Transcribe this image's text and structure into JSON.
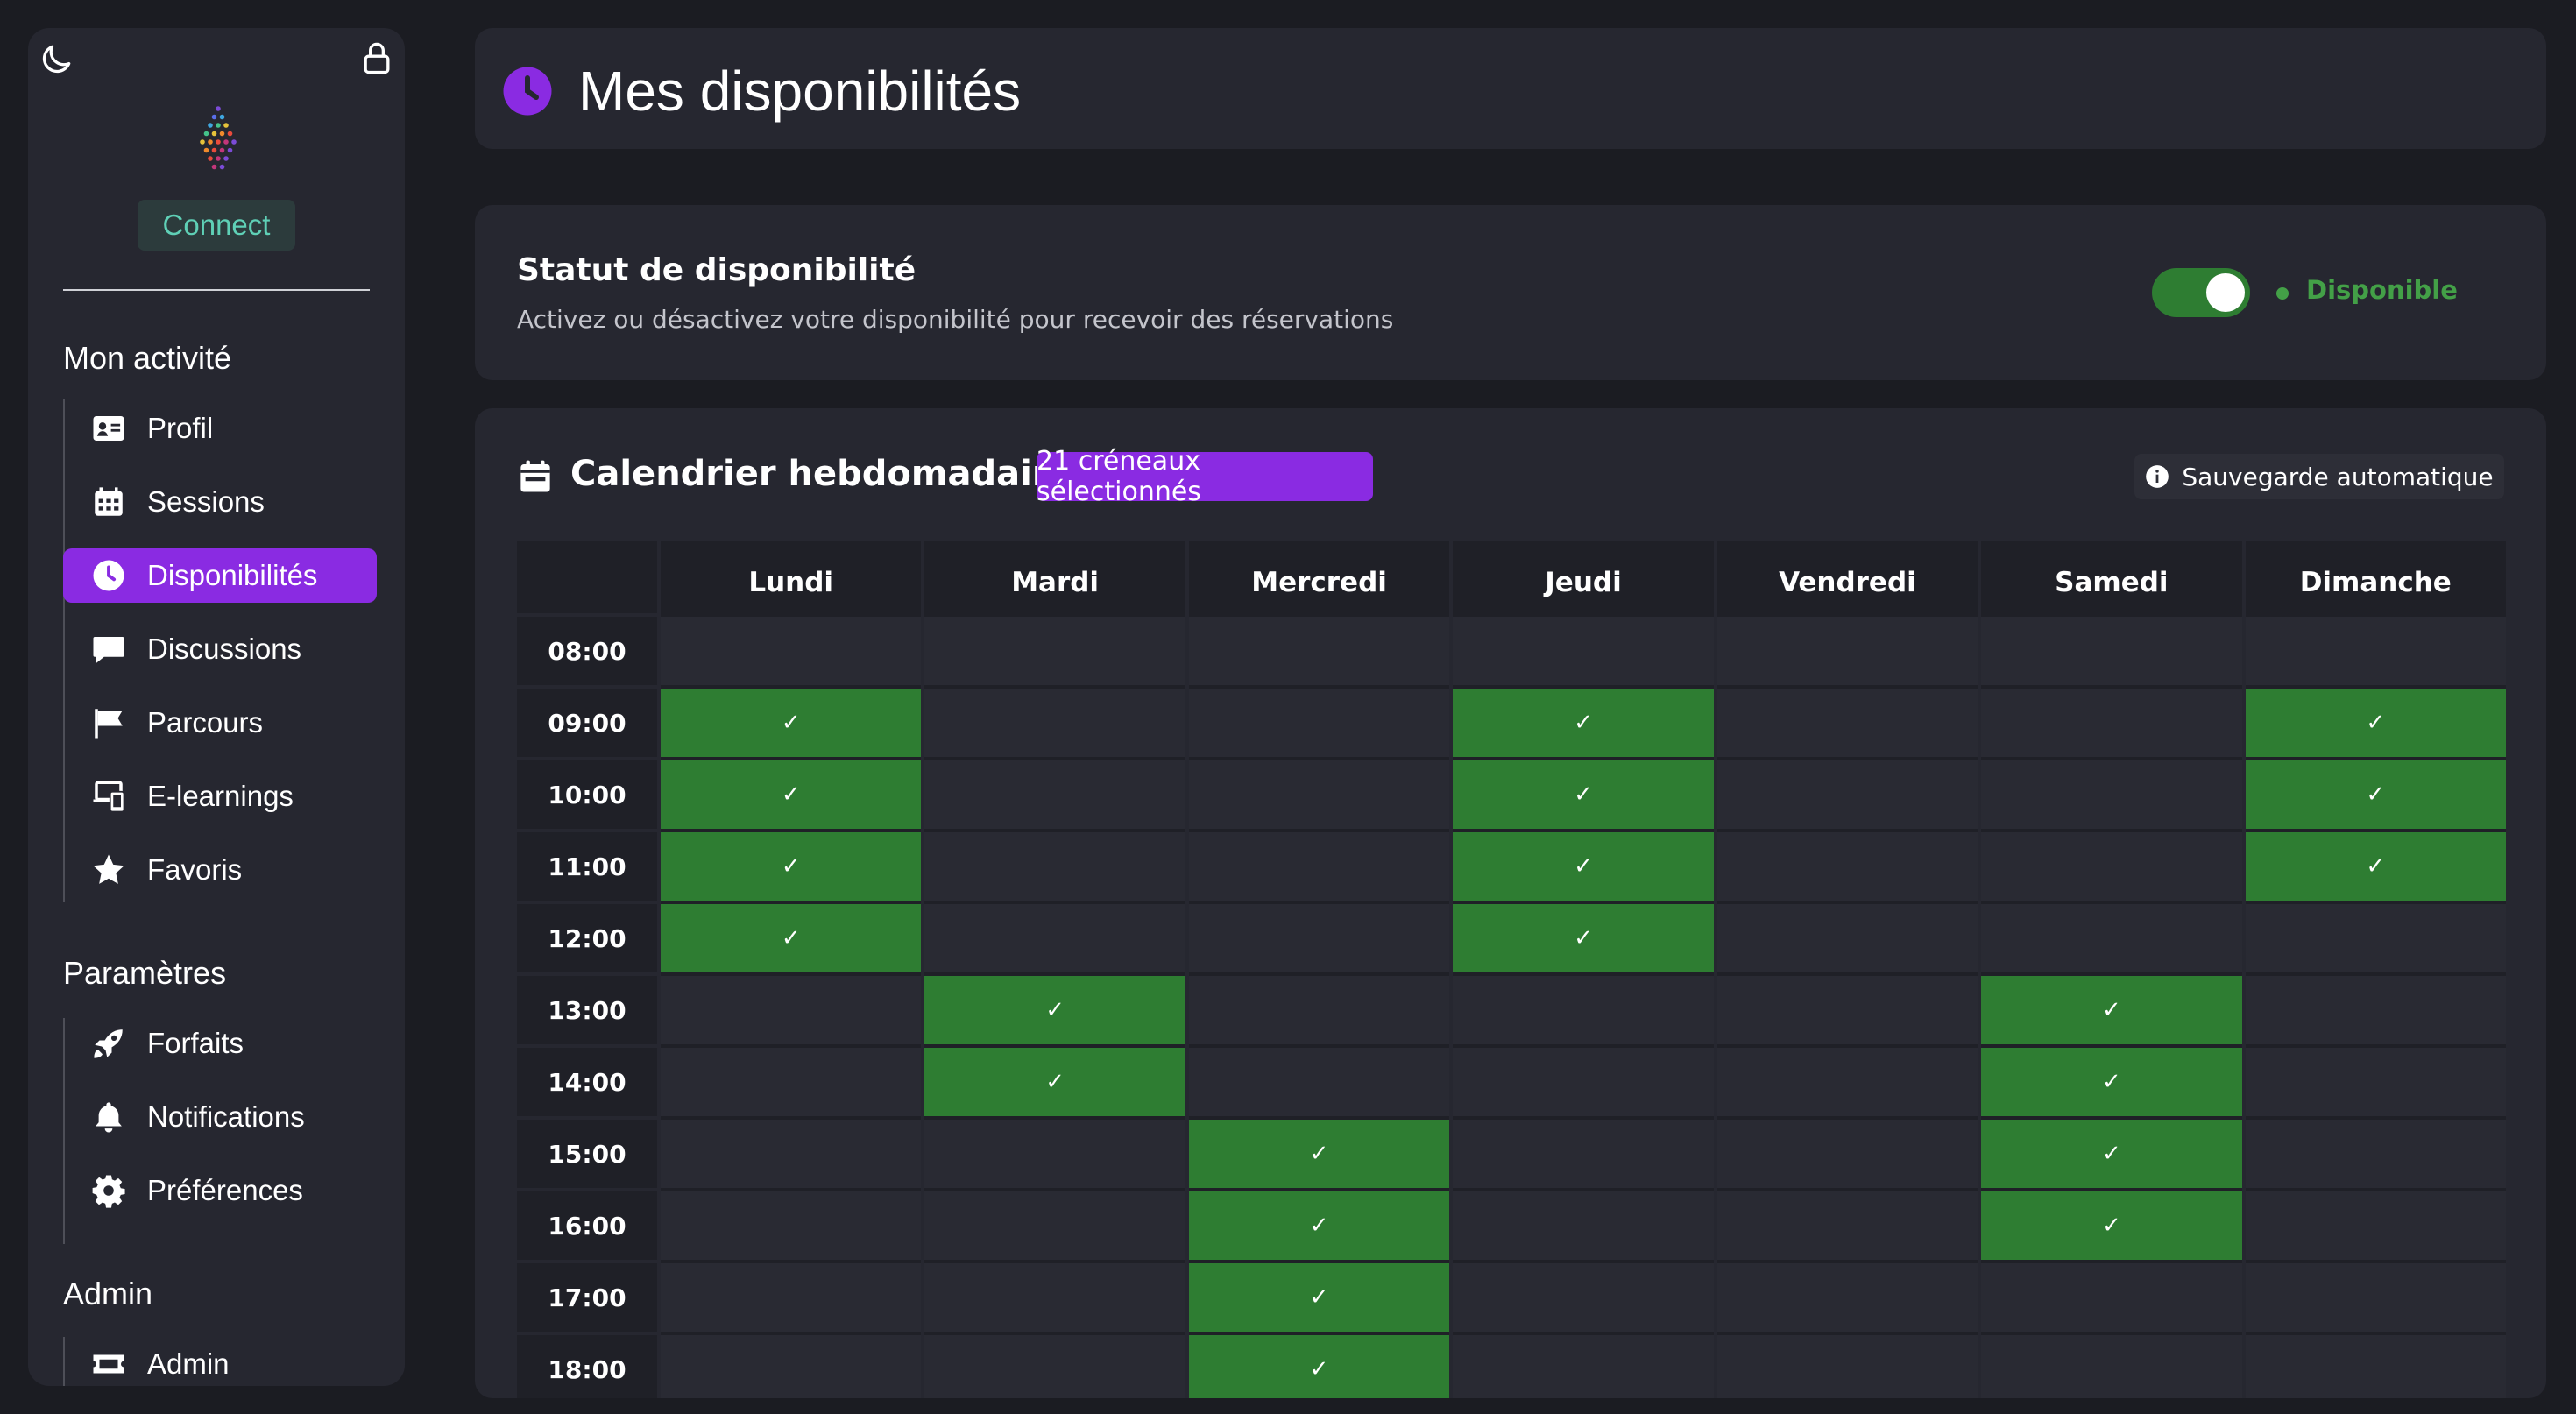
{
  "sidebar": {
    "brand_button": "Connect",
    "sections": [
      {
        "title": "Mon activité",
        "items": [
          {
            "label": "Profil",
            "icon": "id-card-icon"
          },
          {
            "label": "Sessions",
            "icon": "calendar-grid-icon"
          },
          {
            "label": "Disponibilités",
            "icon": "clock-icon",
            "active": true
          },
          {
            "label": "Discussions",
            "icon": "chat-bubble-icon"
          },
          {
            "label": "Parcours",
            "icon": "flag-icon"
          },
          {
            "label": "E-learnings",
            "icon": "devices-icon"
          },
          {
            "label": "Favoris",
            "icon": "star-icon"
          }
        ]
      },
      {
        "title": "Paramètres",
        "items": [
          {
            "label": "Forfaits",
            "icon": "rocket-icon"
          },
          {
            "label": "Notifications",
            "icon": "bell-icon"
          },
          {
            "label": "Préférences",
            "icon": "gear-icon"
          }
        ]
      },
      {
        "title": "Admin",
        "items": [
          {
            "label": "Admin",
            "icon": "ticket-icon"
          }
        ]
      }
    ]
  },
  "header": {
    "title": "Mes disponibilités"
  },
  "status": {
    "title": "Statut de disponibilité",
    "description": "Activez ou désactivez votre disponibilité pour recevoir des réservations",
    "toggle_on": true,
    "label": "Disponible"
  },
  "calendar": {
    "title": "Calendrier hebdomadaire",
    "selected_badge": "21  créneaux sélectionnés",
    "auto_save": "Sauvegarde automatique",
    "days": [
      "Lundi",
      "Mardi",
      "Mercredi",
      "Jeudi",
      "Vendredi",
      "Samedi",
      "Dimanche"
    ],
    "times": [
      "08:00",
      "09:00",
      "10:00",
      "11:00",
      "12:00",
      "13:00",
      "14:00",
      "15:00",
      "16:00",
      "17:00",
      "18:00"
    ],
    "check_mark": "✓",
    "slots": [
      [
        0,
        0,
        0,
        0,
        0,
        0,
        0
      ],
      [
        1,
        0,
        0,
        1,
        0,
        0,
        1
      ],
      [
        1,
        0,
        0,
        1,
        0,
        0,
        1
      ],
      [
        1,
        0,
        0,
        1,
        0,
        0,
        1
      ],
      [
        1,
        0,
        0,
        1,
        0,
        0,
        0
      ],
      [
        0,
        1,
        0,
        0,
        0,
        1,
        0
      ],
      [
        0,
        1,
        0,
        0,
        0,
        1,
        0
      ],
      [
        0,
        0,
        1,
        0,
        0,
        1,
        0
      ],
      [
        0,
        0,
        1,
        0,
        0,
        1,
        0
      ],
      [
        0,
        0,
        1,
        0,
        0,
        0,
        0
      ],
      [
        0,
        0,
        1,
        0,
        0,
        0,
        0
      ]
    ]
  },
  "colors": {
    "accent": "#8a2be2",
    "available": "#2e7d32",
    "status_green": "#43a047",
    "brand_teal": "#5fd0b6"
  }
}
